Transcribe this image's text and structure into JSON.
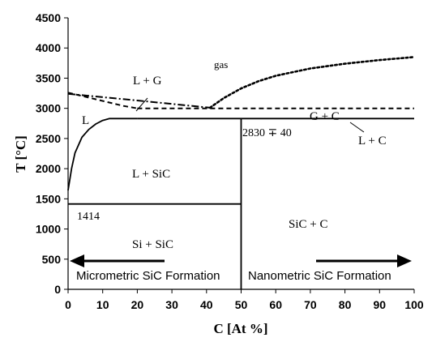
{
  "chart_data": {
    "type": "line",
    "xlabel": "C [At %]",
    "ylabel": "T [°C]",
    "xlim": [
      0,
      100
    ],
    "ylim": [
      0,
      4500
    ],
    "x_ticks": [
      "0",
      "10",
      "20",
      "30",
      "40",
      "50",
      "60",
      "70",
      "80",
      "90",
      "100"
    ],
    "y_ticks": [
      "0",
      "500",
      "1000",
      "1500",
      "2000",
      "2500",
      "3000",
      "3500",
      "4000",
      "4500"
    ],
    "grid": false,
    "series": [
      {
        "style": "solid",
        "x": [
          0,
          1,
          2,
          4,
          6,
          8,
          10,
          12,
          16,
          20
        ],
        "y": [
          1640,
          2000,
          2260,
          2520,
          2650,
          2740,
          2800,
          2830,
          2830,
          2830
        ]
      },
      {
        "style": "solid",
        "x": [
          20,
          100
        ],
        "y": [
          2830,
          2830
        ]
      },
      {
        "style": "solid",
        "x": [
          0,
          50
        ],
        "y": [
          1414,
          1414
        ]
      },
      {
        "style": "solid",
        "x": [
          50,
          50
        ],
        "y": [
          0,
          2830
        ]
      },
      {
        "style": "dashed",
        "x": [
          0,
          8,
          16,
          20
        ],
        "y": [
          3260,
          3150,
          3040,
          3000
        ]
      },
      {
        "style": "dashed",
        "x": [
          20,
          100
        ],
        "y": [
          3000,
          3000
        ]
      },
      {
        "style": "dash-dot",
        "x": [
          0,
          20,
          41
        ],
        "y": [
          3240,
          3130,
          3010
        ]
      },
      {
        "style": "dotted",
        "x": [
          41,
          45,
          50,
          55,
          60,
          70,
          80,
          90,
          100
        ],
        "y": [
          3010,
          3170,
          3330,
          3450,
          3540,
          3660,
          3740,
          3800,
          3850
        ]
      }
    ],
    "annotations": {
      "gas": "gas",
      "l_plus_g": "L + G",
      "g_plus_c": "G + C",
      "l": "L",
      "eutectic": "2830 ∓ 40",
      "l_plus_c": "L + C",
      "l_plus_sic": "L + SiC",
      "melting_si": "1414",
      "sic_plus_c": "SiC + C",
      "si_plus_sic": "Si + SiC",
      "micrometric": "Micrometric SiC Formation",
      "nanometric": "Nanometric SiC Formation"
    }
  }
}
